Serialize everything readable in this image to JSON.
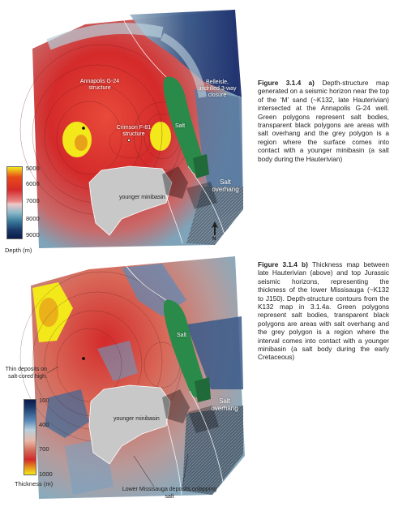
{
  "figure_a": {
    "caption_label": "Figure 3.1.4 a)",
    "caption_text": "Depth-structure map generated on a seismic horizon near the top of the ‘M’ sand (~K132, late Hauterivian) intersected at the Annapolis G-24 well. Green polygons represent salt bodies, transparent black polygons are areas with salt overhang and the grey polygon is a region where the surface comes into contact with a younger minibasin (a salt body during the Hauterivian)",
    "labels": {
      "annapolis": "Annapolis G-24 structure",
      "belleisle": "Belleisle, undrilled 3-way closure",
      "crimson": "Crimson F-81 structure",
      "salt": "Salt",
      "salt_overhang": "Salt overhang",
      "younger_minibasin": "younger minibasin"
    },
    "legend": {
      "ticks": [
        "5000",
        "6000",
        "7000",
        "8000",
        "9000"
      ],
      "title": "Depth (m)"
    },
    "north_label": "N"
  },
  "figure_b": {
    "caption_label": "Figure 3.1.4 b)",
    "caption_text": "Thickness map between late Hauterivian (above) and top Jurassic seismic horizons, representing the thickness of the lower Missisauga (~K132 to J150). Depth-structure contours from the K132 map in 3.1.4a. Green polygons represent salt bodies, transparent black polygons are areas with salt overhang and the grey polygon is a region where the interval comes into contact with a younger minibasin (a salt body during the early Cretaceous)",
    "labels": {
      "salt": "Salt",
      "salt_overhang": "Salt overhang",
      "younger_minibasin": "younger minibasin",
      "thin_deposits": "Thin deposits on salt-cored high.",
      "lower_missisauga": "Lower Missisauga deposits onlapping salt"
    },
    "legend": {
      "ticks": [
        "100",
        "400",
        "700",
        "1000"
      ],
      "title": "Thickness (m)"
    }
  },
  "colors": {
    "salt_green": "#2a8a4a",
    "minibasin_grey": "#c8c8c8",
    "depth_red": "#d42a2a",
    "deep_blue": "#1a2a6a",
    "shallow_yellow": "#f2e81a"
  }
}
